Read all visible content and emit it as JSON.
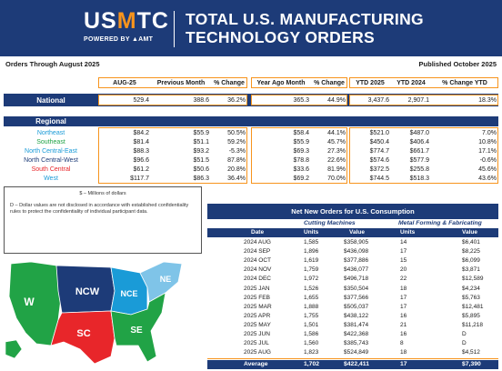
{
  "header": {
    "logo_text_a": "US",
    "logo_text_accent": "M",
    "logo_text_b": "TC",
    "logo_subtitle": "POWERED BY ▲AMT",
    "title_line1": "TOTAL U.S. MANUFACTURING",
    "title_line2": "TECHNOLOGY ORDERS",
    "bg_color": "#1d3b78",
    "accent_color": "#f7941d"
  },
  "meta": {
    "orders_through": "Orders Through August 2025",
    "published": "Published October 2025"
  },
  "summary": {
    "headers": [
      "AUG-25",
      "Previous Month",
      "% Change",
      "Year Ago Month",
      "% Change",
      "YTD 2025",
      "YTD 2024",
      "% Change YTD"
    ],
    "national_label": "National",
    "national": [
      "529.4",
      "388.6",
      "36.2%",
      "365.3",
      "44.9%",
      "3,437.6",
      "2,907.1",
      "18.3%"
    ],
    "regional_label": "Regional",
    "regions": [
      {
        "name": "Northeast",
        "color": "#1a9bd7",
        "values": [
          "$84.2",
          "$55.9",
          "50.5%",
          "$58.4",
          "44.1%",
          "$521.0",
          "$487.0",
          "7.0%"
        ]
      },
      {
        "name": "Southeast",
        "color": "#21a346",
        "values": [
          "$81.4",
          "$51.1",
          "59.2%",
          "$55.9",
          "45.7%",
          "$450.4",
          "$406.4",
          "10.8%"
        ]
      },
      {
        "name": "North Central-East",
        "color": "#1a9bd7",
        "values": [
          "$88.3",
          "$93.2",
          "-5.3%",
          "$69.3",
          "27.3%",
          "$774.7",
          "$661.7",
          "17.1%"
        ]
      },
      {
        "name": "North Central-West",
        "color": "#1d3b78",
        "values": [
          "$96.6",
          "$51.5",
          "87.8%",
          "$78.8",
          "22.6%",
          "$574.6",
          "$577.9",
          "-0.6%"
        ]
      },
      {
        "name": "South Central",
        "color": "#e8262a",
        "values": [
          "$61.2",
          "$50.6",
          "20.8%",
          "$33.6",
          "81.9%",
          "$372.5",
          "$255.8",
          "45.6%"
        ]
      },
      {
        "name": "West",
        "color": "#1a9bd7",
        "values": [
          "$117.7",
          "$86.3",
          "36.4%",
          "$69.2",
          "70.0%",
          "$744.5",
          "$518.3",
          "43.6%"
        ]
      }
    ]
  },
  "notes": {
    "line1": "$ – Millions of dollars",
    "line2": "D – Dollar values are not disclosed in accordance with established confidentiality rules to protect the confidentiality of individual participant data."
  },
  "map": {
    "labels": [
      "W",
      "NCW",
      "NCE",
      "NE",
      "SC",
      "SE"
    ],
    "logo": "▲AMT",
    "colors": {
      "W": "#21a346",
      "NCW": "#1d3b78",
      "NCE": "#1a9bd7",
      "NE": "#7fc4e8",
      "SC": "#e8262a",
      "SE": "#21a346"
    }
  },
  "new_orders": {
    "title": "Net New Orders for U.S. Consumption",
    "group1": "Cutting Machines",
    "group2": "Metal Forming & Fabricating",
    "col_headers": [
      "Date",
      "Units",
      "Value",
      "Units",
      "Value"
    ],
    "rows": [
      [
        "2024 AUG",
        "1,585",
        "$358,905",
        "14",
        "$6,401"
      ],
      [
        "2024 SEP",
        "1,896",
        "$436,098",
        "17",
        "$8,225"
      ],
      [
        "2024 OCT",
        "1,619",
        "$377,886",
        "15",
        "$6,099"
      ],
      [
        "2024 NOV",
        "1,759",
        "$436,077",
        "20",
        "$3,871"
      ],
      [
        "2024 DEC",
        "1,972",
        "$496,718",
        "22",
        "$12,589"
      ],
      [
        "2025 JAN",
        "1,526",
        "$350,504",
        "18",
        "$4,234"
      ],
      [
        "2025 FEB",
        "1,655",
        "$377,566",
        "17",
        "$5,763"
      ],
      [
        "2025 MAR",
        "1,888",
        "$505,037",
        "17",
        "$12,481"
      ],
      [
        "2025 APR",
        "1,755",
        "$438,122",
        "16",
        "$5,895"
      ],
      [
        "2025 MAY",
        "1,501",
        "$381,474",
        "21",
        "$11,218"
      ],
      [
        "2025 JUN",
        "1,586",
        "$422,368",
        "16",
        "D"
      ],
      [
        "2025 JUL",
        "1,560",
        "$385,743",
        "8",
        "D"
      ],
      [
        "2025 AUG",
        "1,823",
        "$524,849",
        "18",
        "$4,512"
      ]
    ],
    "average": [
      "Average",
      "1,702",
      "$422,411",
      "17",
      "$7,390"
    ]
  }
}
